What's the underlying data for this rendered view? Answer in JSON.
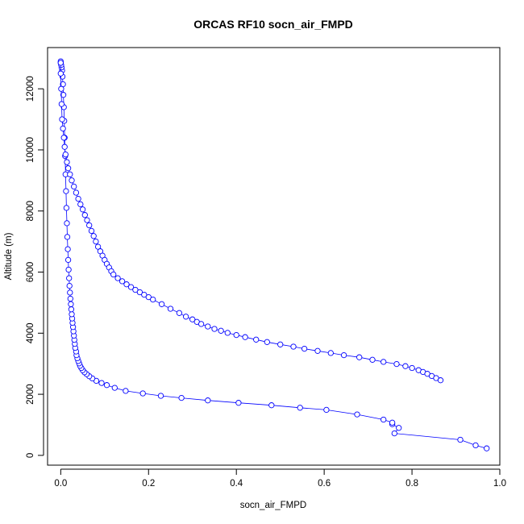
{
  "chart_data": {
    "type": "scatter",
    "title": "ORCAS RF10 socn_air_FMPD",
    "xlabel": "socn_air_FMPD",
    "ylabel": "Altitude (m)",
    "xlim": [
      -0.03,
      1.0
    ],
    "ylim": [
      -320,
      13350
    ],
    "x_ticks": [
      0,
      0.2,
      0.4,
      0.6,
      0.8,
      1.0
    ],
    "x_tick_labels": [
      "0.0",
      "0.2",
      "0.4",
      "0.6",
      "0.8",
      "1.0"
    ],
    "y_ticks": [
      0,
      2000,
      4000,
      6000,
      8000,
      10000,
      12000
    ],
    "y_tick_labels": [
      "0",
      "2000",
      "4000",
      "6000",
      "8000",
      "10000",
      "12000"
    ],
    "grid": false,
    "line_color": "#0000ff",
    "series": [
      {
        "marker": "open-circle",
        "connected": true,
        "x": [
          0.97,
          0.945,
          0.91,
          0.76,
          0.77,
          0.755,
          0.755,
          0.735,
          0.675,
          0.605,
          0.545,
          0.48,
          0.405,
          0.335,
          0.275,
          0.228,
          0.187,
          0.148,
          0.123,
          0.105,
          0.093,
          0.081,
          0.072,
          0.065,
          0.059,
          0.054,
          0.05,
          0.047,
          0.044,
          0.042,
          0.04,
          0.038,
          0.036,
          0.035,
          0.033,
          0.032,
          0.031,
          0.03,
          0.029,
          0.028,
          0.027,
          0.026,
          0.025,
          0.024,
          0.023,
          0.022,
          0.021,
          0.02,
          0.019,
          0.018,
          0.017,
          0.016,
          0.015,
          0.014,
          0.013,
          0.012,
          0.011,
          0.01,
          0.009,
          0.008,
          0.007,
          0.006,
          0.005,
          0.004,
          0.003,
          0.002,
          0.001,
          0.0,
          0.0
        ],
        "y": [
          230,
          330,
          510,
          720,
          900,
          1020,
          1070,
          1170,
          1340,
          1490,
          1560,
          1640,
          1720,
          1800,
          1880,
          1950,
          2030,
          2110,
          2210,
          2300,
          2370,
          2440,
          2520,
          2590,
          2660,
          2720,
          2790,
          2860,
          2930,
          3010,
          3090,
          3180,
          3280,
          3400,
          3520,
          3650,
          3780,
          3920,
          4060,
          4200,
          4340,
          4480,
          4620,
          4780,
          4950,
          5130,
          5330,
          5550,
          5800,
          6080,
          6400,
          6750,
          7150,
          7600,
          8100,
          8650,
          9200,
          9800,
          10400,
          10950,
          11400,
          11800,
          12150,
          12400,
          12600,
          12700,
          12780,
          12850,
          12900
        ]
      },
      {
        "marker": "open-circle",
        "connected": true,
        "x": [
          0.0,
          0.0,
          0.001,
          0.002,
          0.003,
          0.005,
          0.007,
          0.009,
          0.011,
          0.014,
          0.017,
          0.021,
          0.025,
          0.03,
          0.035,
          0.04,
          0.045,
          0.05,
          0.055,
          0.06,
          0.065,
          0.07,
          0.075,
          0.08,
          0.085,
          0.09,
          0.095,
          0.1,
          0.105,
          0.11,
          0.115,
          0.12,
          0.13,
          0.14,
          0.15,
          0.16,
          0.17,
          0.18,
          0.19,
          0.2,
          0.21,
          0.23,
          0.25,
          0.27,
          0.285,
          0.3,
          0.31,
          0.32,
          0.335,
          0.35,
          0.365,
          0.38,
          0.4,
          0.42,
          0.445,
          0.47,
          0.5,
          0.53,
          0.555,
          0.585,
          0.615,
          0.645,
          0.68,
          0.71,
          0.735,
          0.765,
          0.785,
          0.8,
          0.815,
          0.825,
          0.835,
          0.845,
          0.855,
          0.865
        ],
        "y": [
          12850,
          12500,
          12000,
          11500,
          11000,
          10700,
          10400,
          10100,
          9850,
          9600,
          9400,
          9200,
          9000,
          8800,
          8600,
          8400,
          8220,
          8050,
          7870,
          7700,
          7530,
          7350,
          7180,
          7000,
          6830,
          6680,
          6540,
          6400,
          6270,
          6150,
          6030,
          5920,
          5800,
          5700,
          5600,
          5510,
          5420,
          5340,
          5260,
          5180,
          5100,
          4950,
          4800,
          4660,
          4540,
          4450,
          4370,
          4300,
          4220,
          4140,
          4080,
          4010,
          3940,
          3870,
          3790,
          3710,
          3630,
          3560,
          3490,
          3420,
          3350,
          3280,
          3210,
          3130,
          3060,
          2990,
          2920,
          2860,
          2790,
          2730,
          2670,
          2600,
          2530,
          2460
        ]
      }
    ]
  }
}
